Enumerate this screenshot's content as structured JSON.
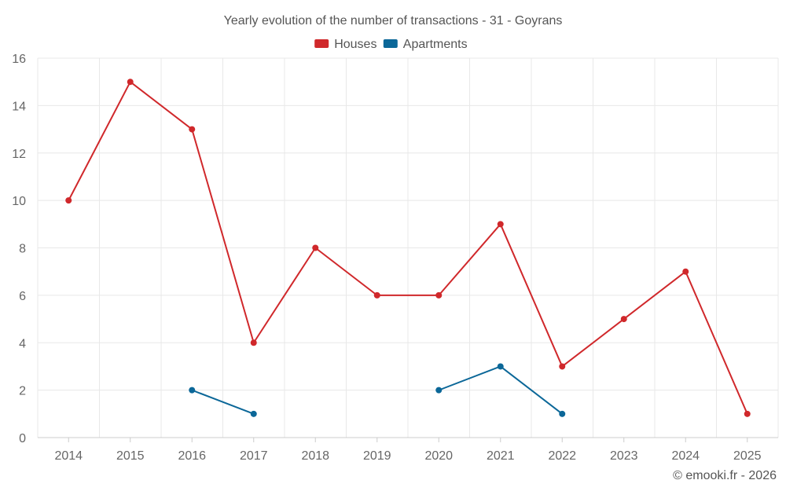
{
  "chart_data": {
    "type": "line",
    "title": "Yearly evolution of the number of transactions - 31 - Goyrans",
    "categories": [
      "2014",
      "2015",
      "2016",
      "2017",
      "2018",
      "2019",
      "2020",
      "2021",
      "2022",
      "2023",
      "2024",
      "2025"
    ],
    "ylim": [
      0,
      16
    ],
    "yticks": [
      0,
      2,
      4,
      6,
      8,
      10,
      12,
      14,
      16
    ],
    "grid": true,
    "legend_position": "top-center",
    "series": [
      {
        "name": "Houses",
        "color": "#d0282b",
        "values": [
          10,
          15,
          13,
          4,
          8,
          6,
          6,
          9,
          3,
          5,
          7,
          1
        ]
      },
      {
        "name": "Apartments",
        "color": "#0b6798",
        "values": [
          null,
          null,
          2,
          1,
          null,
          null,
          2,
          3,
          1,
          null,
          null,
          null
        ]
      }
    ],
    "credit": "© emooki.fr - 2026"
  }
}
